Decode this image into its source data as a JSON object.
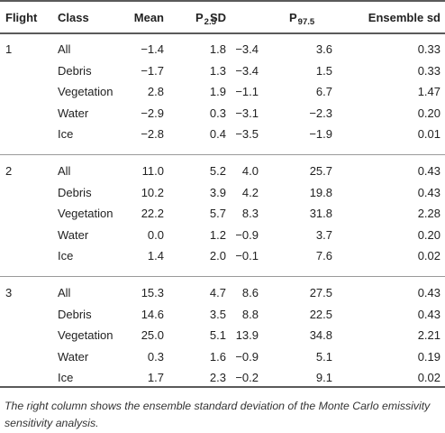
{
  "table": {
    "headers": {
      "flight": "Flight",
      "class": "Class",
      "mean": "Mean",
      "sd": "SD",
      "p_low": "P",
      "p_low_sub": "2.5",
      "p_high": "P",
      "p_high_sub": "97.5",
      "ensemble": "Ensemble sd"
    },
    "groups": [
      {
        "flight": "1",
        "rows": [
          {
            "class": "All",
            "mean": "−1.4",
            "sd": "1.8",
            "p_low": "−3.4",
            "p_high": "3.6",
            "ensemble": "0.33"
          },
          {
            "class": "Debris",
            "mean": "−1.7",
            "sd": "1.3",
            "p_low": "−3.4",
            "p_high": "1.5",
            "ensemble": "0.33"
          },
          {
            "class": "Vegetation",
            "mean": "2.8",
            "sd": "1.9",
            "p_low": "−1.1",
            "p_high": "6.7",
            "ensemble": "1.47"
          },
          {
            "class": "Water",
            "mean": "−2.9",
            "sd": "0.3",
            "p_low": "−3.1",
            "p_high": "−2.3",
            "ensemble": "0.20"
          },
          {
            "class": "Ice",
            "mean": "−2.8",
            "sd": "0.4",
            "p_low": "−3.5",
            "p_high": "−1.9",
            "ensemble": "0.01"
          }
        ]
      },
      {
        "flight": "2",
        "rows": [
          {
            "class": "All",
            "mean": "11.0",
            "sd": "5.2",
            "p_low": "4.0",
            "p_high": "25.7",
            "ensemble": "0.43"
          },
          {
            "class": "Debris",
            "mean": "10.2",
            "sd": "3.9",
            "p_low": "4.2",
            "p_high": "19.8",
            "ensemble": "0.43"
          },
          {
            "class": "Vegetation",
            "mean": "22.2",
            "sd": "5.7",
            "p_low": "8.3",
            "p_high": "31.8",
            "ensemble": "2.28"
          },
          {
            "class": "Water",
            "mean": "0.0",
            "sd": "1.2",
            "p_low": "−0.9",
            "p_high": "3.7",
            "ensemble": "0.20"
          },
          {
            "class": "Ice",
            "mean": "1.4",
            "sd": "2.0",
            "p_low": "−0.1",
            "p_high": "7.6",
            "ensemble": "0.02"
          }
        ]
      },
      {
        "flight": "3",
        "rows": [
          {
            "class": "All",
            "mean": "15.3",
            "sd": "4.7",
            "p_low": "8.6",
            "p_high": "27.5",
            "ensemble": "0.43"
          },
          {
            "class": "Debris",
            "mean": "14.6",
            "sd": "3.5",
            "p_low": "8.8",
            "p_high": "22.5",
            "ensemble": "0.43"
          },
          {
            "class": "Vegetation",
            "mean": "25.0",
            "sd": "5.1",
            "p_low": "13.9",
            "p_high": "34.8",
            "ensemble": "2.21"
          },
          {
            "class": "Water",
            "mean": "0.3",
            "sd": "1.6",
            "p_low": "−0.9",
            "p_high": "5.1",
            "ensemble": "0.19"
          },
          {
            "class": "Ice",
            "mean": "1.7",
            "sd": "2.3",
            "p_low": "−0.2",
            "p_high": "9.1",
            "ensemble": "0.02"
          }
        ]
      }
    ]
  },
  "caption": "The right column shows the ensemble standard deviation of the Monte Carlo emissivity sensitivity analysis."
}
